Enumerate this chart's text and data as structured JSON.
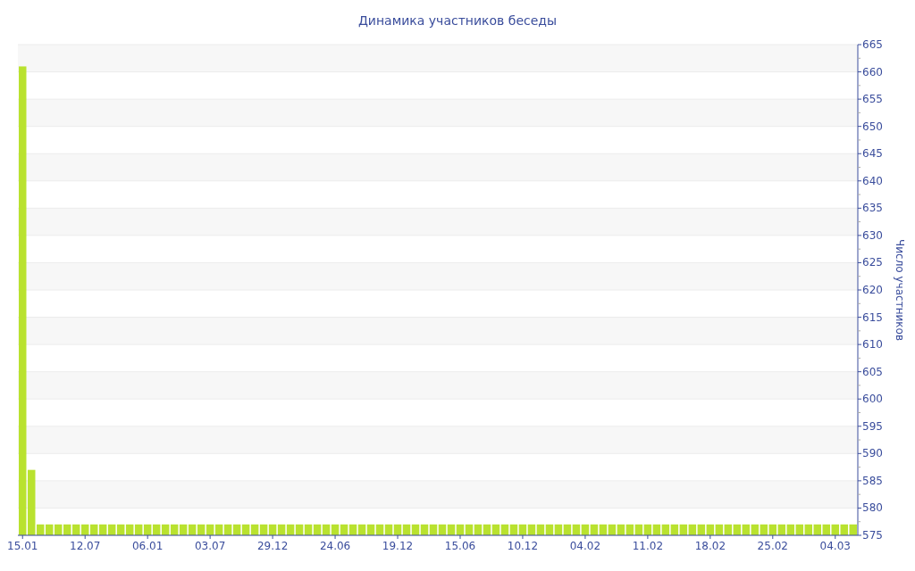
{
  "chart_data": {
    "type": "bar",
    "title": "Динамика участников беседы",
    "ylabel": "Число участников",
    "categories": [
      "15.01",
      null,
      null,
      null,
      null,
      null,
      null,
      "12.07",
      null,
      null,
      null,
      null,
      null,
      null,
      "06.01",
      null,
      null,
      null,
      null,
      null,
      null,
      "03.07",
      null,
      null,
      null,
      null,
      null,
      null,
      "29.12",
      null,
      null,
      null,
      null,
      null,
      null,
      "24.06",
      null,
      null,
      null,
      null,
      null,
      null,
      "19.12",
      null,
      null,
      null,
      null,
      null,
      null,
      "15.06",
      null,
      null,
      null,
      null,
      null,
      null,
      "10.12",
      null,
      null,
      null,
      null,
      null,
      null,
      "04.02",
      null,
      null,
      null,
      null,
      null,
      null,
      "11.02",
      null,
      null,
      null,
      null,
      null,
      null,
      "18.02",
      null,
      null,
      null,
      null,
      null,
      null,
      "25.02",
      null,
      null,
      null,
      null,
      null,
      null,
      "04.03",
      null,
      null
    ],
    "values": [
      661,
      587,
      577,
      577,
      577,
      577,
      577,
      577,
      577,
      577,
      577,
      577,
      577,
      577,
      577,
      577,
      577,
      577,
      577,
      577,
      577,
      577,
      577,
      577,
      577,
      577,
      577,
      577,
      577,
      577,
      577,
      577,
      577,
      577,
      577,
      577,
      577,
      577,
      577,
      577,
      577,
      577,
      577,
      577,
      577,
      577,
      577,
      577,
      577,
      577,
      577,
      577,
      577,
      577,
      577,
      577,
      577,
      577,
      577,
      577,
      577,
      577,
      577,
      577,
      577,
      577,
      577,
      577,
      577,
      577,
      577,
      577,
      577,
      577,
      577,
      577,
      577,
      577,
      577,
      577,
      577,
      577,
      577,
      577,
      577,
      577,
      577,
      577,
      577,
      577,
      577,
      577,
      577,
      577
    ],
    "color": "#b9e22f",
    "ylim": [
      575,
      665
    ],
    "yticks": [
      575,
      580,
      585,
      590,
      595,
      600,
      605,
      610,
      615,
      620,
      625,
      630,
      635,
      640,
      645,
      650,
      655,
      660,
      665
    ],
    "grid": true
  }
}
